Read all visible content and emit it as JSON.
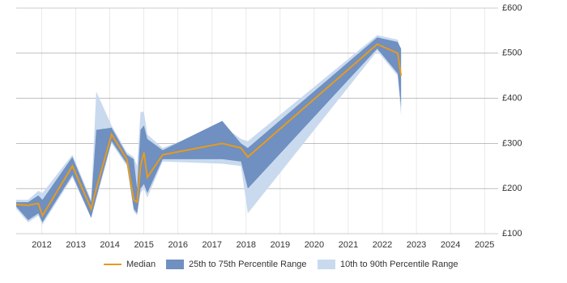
{
  "chart_data": {
    "type": "line-band",
    "x": [
      2011.25,
      2011.6,
      2011.9,
      2012.02,
      2012.9,
      2013.45,
      2013.6,
      2014.05,
      2014.5,
      2014.7,
      2014.8,
      2014.9,
      2015.0,
      2015.1,
      2015.55,
      2017.3,
      2017.85,
      2018.05,
      2021.85,
      2022.45,
      2022.55
    ],
    "series": [
      {
        "name": "Median",
        "color": "#e89a1e",
        "values": [
          165,
          163,
          167,
          140,
          250,
          155,
          200,
          320,
          265,
          175,
          170,
          250,
          280,
          225,
          275,
          300,
          290,
          270,
          520,
          500,
          450
        ]
      },
      {
        "name": "25th to 75th Percentile Range",
        "color": "#6f90c0",
        "lower": [
          160,
          130,
          145,
          125,
          230,
          135,
          180,
          305,
          255,
          155,
          145,
          200,
          210,
          190,
          265,
          265,
          260,
          200,
          510,
          455,
          380
        ],
        "upper": [
          170,
          170,
          185,
          175,
          270,
          170,
          330,
          335,
          275,
          265,
          200,
          330,
          340,
          310,
          285,
          350,
          300,
          290,
          535,
          525,
          510
        ]
      },
      {
        "name": "10th to 90th Percentile Range",
        "color": "#c9daef",
        "lower": [
          155,
          125,
          140,
          120,
          225,
          135,
          175,
          300,
          250,
          150,
          140,
          190,
          200,
          180,
          260,
          255,
          250,
          145,
          505,
          450,
          360
        ],
        "upper": [
          175,
          175,
          195,
          190,
          275,
          175,
          415,
          340,
          280,
          270,
          250,
          370,
          370,
          320,
          290,
          340,
          310,
          305,
          540,
          530,
          505
        ]
      }
    ],
    "xlim": [
      2011.25,
      2025.4
    ],
    "xticks": [
      2012,
      2013,
      2014,
      2015,
      2016,
      2017,
      2018,
      2019,
      2020,
      2021,
      2022,
      2023,
      2024,
      2025
    ],
    "ylim": [
      100,
      600
    ],
    "yticks": [
      {
        "value": 100,
        "label": "£100"
      },
      {
        "value": 200,
        "label": "£200"
      },
      {
        "value": 300,
        "label": "£300"
      },
      {
        "value": 400,
        "label": "£400"
      },
      {
        "value": 500,
        "label": "£500"
      },
      {
        "value": 600,
        "label": "£600"
      }
    ],
    "grid": true
  }
}
